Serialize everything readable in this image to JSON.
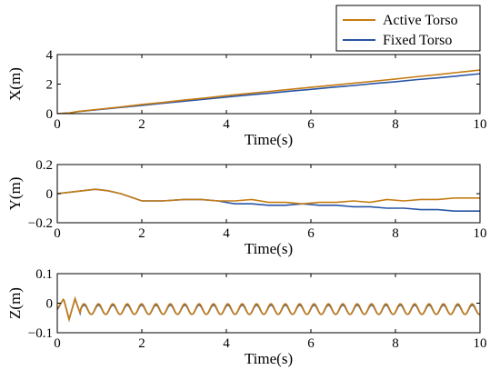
{
  "colors": {
    "active_torso": "#c57b12",
    "fixed_torso": "#2855a6",
    "axis": "#000000"
  },
  "legend": {
    "items": [
      {
        "label": "Active Torso",
        "color": "#c57b12"
      },
      {
        "label": "Fixed Torso",
        "color": "#2855a6"
      }
    ],
    "placement": "top-right"
  },
  "chart_data": [
    {
      "type": "line",
      "xlabel": "Time(s)",
      "ylabel": "X(m)",
      "xlim": [
        0,
        10
      ],
      "ylim": [
        0,
        4
      ],
      "xticks": [
        "0",
        "2",
        "4",
        "6",
        "8",
        "10"
      ],
      "yticks": [
        "0",
        "2",
        "4"
      ],
      "grid": false,
      "series": [
        {
          "name": "Active Torso",
          "color": "#c57b12",
          "x": [
            0,
            0.3,
            0.5,
            1,
            1.5,
            2,
            2.5,
            3,
            3.5,
            4,
            4.5,
            5,
            5.5,
            6,
            6.5,
            7,
            7.5,
            8,
            8.5,
            9,
            9.5,
            10
          ],
          "y": [
            0,
            0.05,
            0.15,
            0.3,
            0.45,
            0.62,
            0.76,
            0.92,
            1.06,
            1.22,
            1.36,
            1.5,
            1.64,
            1.78,
            1.92,
            2.06,
            2.2,
            2.34,
            2.5,
            2.64,
            2.8,
            2.95
          ]
        },
        {
          "name": "Fixed Torso",
          "color": "#2855a6",
          "x": [
            0,
            0.3,
            0.5,
            1,
            1.5,
            2,
            2.5,
            3,
            3.5,
            4,
            4.5,
            5,
            5.5,
            6,
            6.5,
            7,
            7.5,
            8,
            8.5,
            9,
            9.5,
            10
          ],
          "y": [
            0,
            0.05,
            0.14,
            0.28,
            0.42,
            0.56,
            0.7,
            0.84,
            0.98,
            1.12,
            1.26,
            1.38,
            1.52,
            1.64,
            1.78,
            1.9,
            2.04,
            2.16,
            2.3,
            2.42,
            2.56,
            2.7
          ]
        }
      ]
    },
    {
      "type": "line",
      "xlabel": "Time(s)",
      "ylabel": "Y(m)",
      "xlim": [
        0,
        10
      ],
      "ylim": [
        -0.2,
        0.2
      ],
      "xticks": [
        "0",
        "2",
        "4",
        "6",
        "8",
        "10"
      ],
      "yticks": [
        "-0.2",
        "0",
        "0.2"
      ],
      "grid": false,
      "series": [
        {
          "name": "Active Torso",
          "color": "#c57b12",
          "x": [
            0,
            0.3,
            0.6,
            0.9,
            1.2,
            1.5,
            1.8,
            2,
            2.5,
            3,
            3.4,
            3.8,
            4.2,
            4.6,
            5,
            5.4,
            5.8,
            6.2,
            6.6,
            7,
            7.4,
            7.8,
            8.2,
            8.6,
            9,
            9.4,
            9.8,
            10
          ],
          "y": [
            0,
            0.01,
            0.02,
            0.03,
            0.02,
            0,
            -0.03,
            -0.05,
            -0.05,
            -0.04,
            -0.04,
            -0.05,
            -0.05,
            -0.04,
            -0.06,
            -0.06,
            -0.07,
            -0.06,
            -0.06,
            -0.05,
            -0.06,
            -0.04,
            -0.05,
            -0.04,
            -0.04,
            -0.03,
            -0.03,
            -0.03
          ]
        },
        {
          "name": "Fixed Torso",
          "color": "#2855a6",
          "x": [
            0,
            0.3,
            0.6,
            0.9,
            1.2,
            1.5,
            1.8,
            2,
            2.5,
            3,
            3.4,
            3.8,
            4.2,
            4.6,
            5,
            5.4,
            5.8,
            6.2,
            6.6,
            7,
            7.4,
            7.8,
            8.2,
            8.6,
            9,
            9.4,
            9.8,
            10
          ],
          "y": [
            0,
            0.01,
            0.02,
            0.03,
            0.02,
            0,
            -0.03,
            -0.05,
            -0.05,
            -0.04,
            -0.04,
            -0.05,
            -0.07,
            -0.07,
            -0.08,
            -0.08,
            -0.07,
            -0.08,
            -0.08,
            -0.09,
            -0.09,
            -0.1,
            -0.1,
            -0.11,
            -0.11,
            -0.12,
            -0.12,
            -0.12
          ]
        }
      ]
    },
    {
      "type": "line",
      "xlabel": "Time(s)",
      "ylabel": "Z(m)",
      "xlim": [
        0,
        10
      ],
      "ylim": [
        -0.1,
        0.1
      ],
      "xticks": [
        "0",
        "2",
        "4",
        "6",
        "8",
        "10"
      ],
      "yticks": [
        "-0.1",
        "0",
        "0.1"
      ],
      "grid": false,
      "series": [
        {
          "name": "Active Torso",
          "color": "#c57b12",
          "pattern": "oscillation",
          "baseline": -0.02,
          "amplitude": 0.018,
          "period_s": 0.34,
          "transient_peak": 0.015,
          "transient_trough": -0.055
        },
        {
          "name": "Fixed Torso",
          "color": "#2855a6",
          "pattern": "oscillation",
          "baseline": -0.022,
          "amplitude": 0.016,
          "period_s": 0.34,
          "transient_peak": 0.015,
          "transient_trough": -0.055
        }
      ]
    }
  ]
}
